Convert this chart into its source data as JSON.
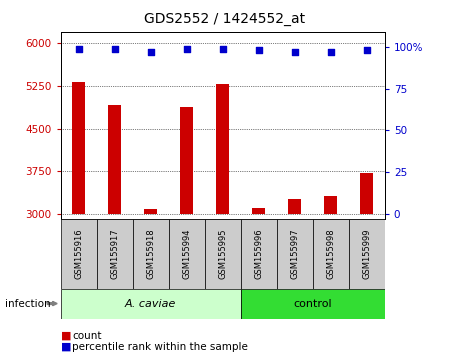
{
  "title": "GDS2552 / 1424552_at",
  "samples": [
    "GSM155916",
    "GSM155917",
    "GSM155918",
    "GSM155994",
    "GSM155995",
    "GSM155996",
    "GSM155997",
    "GSM155998",
    "GSM155999"
  ],
  "counts": [
    5320,
    4920,
    3080,
    4870,
    5290,
    3110,
    3260,
    3320,
    3720
  ],
  "percentiles": [
    99,
    99,
    97,
    99,
    99,
    98,
    97,
    97,
    98
  ],
  "groups": [
    "A. caviae",
    "A. caviae",
    "A. caviae",
    "A. caviae",
    "A. caviae",
    "control",
    "control",
    "control",
    "control"
  ],
  "group_colors": {
    "A. caviae": "#ccffcc",
    "control": "#33dd33"
  },
  "bar_color": "#cc0000",
  "dot_color": "#0000cc",
  "ylim_left": [
    2900,
    6200
  ],
  "ylim_right": [
    -3.5,
    109
  ],
  "yticks_left": [
    3000,
    3750,
    4500,
    5250,
    6000
  ],
  "yticks_right": [
    0,
    25,
    50,
    75,
    100
  ],
  "yright_labels": [
    "0",
    "25",
    "50",
    "75",
    "100%"
  ],
  "background_color": "#ffffff",
  "label_count": "count",
  "label_percentile": "percentile rank within the sample",
  "infection_label": "infection",
  "bar_baseline": 3000,
  "bar_width": 0.35,
  "sample_box_color": "#cccccc",
  "left_tick_color": "#cc0000",
  "right_tick_color": "#0000cc"
}
